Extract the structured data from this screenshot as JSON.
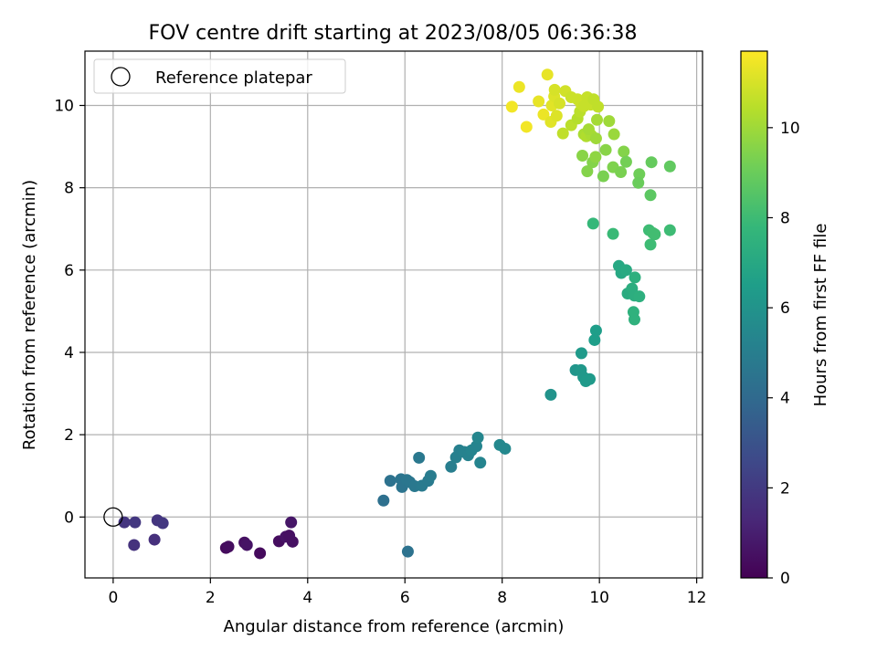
{
  "chart_data": {
    "type": "scatter",
    "title": "FOV centre drift starting at 2023/08/05 06:36:38",
    "xlabel": "Angular distance from reference (arcmin)",
    "ylabel": "Rotation from reference (arcmin)",
    "xlim": [
      -0.58,
      12.12
    ],
    "ylim": [
      -1.48,
      11.32
    ],
    "xticks": [
      "0",
      "2",
      "4",
      "6",
      "8",
      "10",
      "12"
    ],
    "yticks": [
      "0",
      "2",
      "4",
      "6",
      "8",
      "10"
    ],
    "grid": true,
    "legend": {
      "placement": "top-left",
      "entries": [
        {
          "label": "Reference platepar",
          "marker": "hollow-circle"
        }
      ]
    },
    "reference_point": {
      "x": 0,
      "y": 0
    },
    "colorbar": {
      "label": "Hours from first FF file",
      "range": [
        0,
        11.7
      ],
      "ticks": [
        "0",
        "2",
        "4",
        "6",
        "8",
        "10"
      ],
      "colormap": "viridis",
      "colormap_stops": [
        "#440154",
        "#482878",
        "#3e4989",
        "#31688e",
        "#26828e",
        "#1f9e89",
        "#35b779",
        "#6ece58",
        "#b5de2b",
        "#fde725"
      ]
    },
    "series": [
      {
        "points": [
          {
            "x": 2.32,
            "y": -0.75,
            "h": 0.3
          },
          {
            "x": 2.37,
            "y": -0.72,
            "h": 0.4
          },
          {
            "x": 2.7,
            "y": -0.62,
            "h": 0.5
          },
          {
            "x": 2.75,
            "y": -0.68,
            "h": 0.6
          },
          {
            "x": 3.02,
            "y": -0.88,
            "h": 0.3
          },
          {
            "x": 3.41,
            "y": -0.59,
            "h": 0.4
          },
          {
            "x": 3.55,
            "y": -0.48,
            "h": 0.6
          },
          {
            "x": 3.62,
            "y": -0.45,
            "h": 0.5
          },
          {
            "x": 3.66,
            "y": -0.13,
            "h": 0.7
          },
          {
            "x": 3.69,
            "y": -0.6,
            "h": 0.5
          },
          {
            "x": 0.23,
            "y": -0.13,
            "h": 1.8
          },
          {
            "x": 0.45,
            "y": -0.13,
            "h": 1.9
          },
          {
            "x": 0.43,
            "y": -0.68,
            "h": 1.7
          },
          {
            "x": 0.85,
            "y": -0.55,
            "h": 1.6
          },
          {
            "x": 0.91,
            "y": -0.08,
            "h": 1.8
          },
          {
            "x": 1.02,
            "y": -0.15,
            "h": 1.9
          },
          {
            "x": 5.56,
            "y": 0.4,
            "h": 4.3
          },
          {
            "x": 5.7,
            "y": 0.88,
            "h": 4.4
          },
          {
            "x": 5.92,
            "y": 0.92,
            "h": 4.5
          },
          {
            "x": 5.94,
            "y": 0.73,
            "h": 4.5
          },
          {
            "x": 6.04,
            "y": 0.9,
            "h": 4.6
          },
          {
            "x": 6.1,
            "y": 0.85,
            "h": 4.6
          },
          {
            "x": 6.2,
            "y": 0.75,
            "h": 4.7
          },
          {
            "x": 6.35,
            "y": 0.76,
            "h": 4.8
          },
          {
            "x": 6.48,
            "y": 0.88,
            "h": 4.8
          },
          {
            "x": 6.53,
            "y": 1.0,
            "h": 4.9
          },
          {
            "x": 6.29,
            "y": 1.44,
            "h": 4.7
          },
          {
            "x": 6.06,
            "y": -0.84,
            "h": 4.4
          },
          {
            "x": 6.95,
            "y": 1.22,
            "h": 5.0
          },
          {
            "x": 7.05,
            "y": 1.45,
            "h": 5.1
          },
          {
            "x": 7.12,
            "y": 1.62,
            "h": 5.1
          },
          {
            "x": 7.22,
            "y": 1.58,
            "h": 5.2
          },
          {
            "x": 7.3,
            "y": 1.5,
            "h": 5.2
          },
          {
            "x": 7.37,
            "y": 1.62,
            "h": 5.3
          },
          {
            "x": 7.47,
            "y": 1.72,
            "h": 5.3
          },
          {
            "x": 7.5,
            "y": 1.93,
            "h": 5.4
          },
          {
            "x": 7.55,
            "y": 1.32,
            "h": 5.3
          },
          {
            "x": 7.95,
            "y": 1.75,
            "h": 5.5
          },
          {
            "x": 8.06,
            "y": 1.66,
            "h": 5.5
          },
          {
            "x": 9.0,
            "y": 2.97,
            "h": 6.0
          },
          {
            "x": 9.51,
            "y": 3.57,
            "h": 6.1
          },
          {
            "x": 9.62,
            "y": 3.57,
            "h": 6.2
          },
          {
            "x": 9.67,
            "y": 3.4,
            "h": 6.2
          },
          {
            "x": 9.72,
            "y": 3.3,
            "h": 6.3
          },
          {
            "x": 9.8,
            "y": 3.35,
            "h": 6.3
          },
          {
            "x": 9.63,
            "y": 3.98,
            "h": 6.3
          },
          {
            "x": 9.9,
            "y": 4.3,
            "h": 6.5
          },
          {
            "x": 9.93,
            "y": 4.53,
            "h": 6.5
          },
          {
            "x": 10.4,
            "y": 6.1,
            "h": 7.0
          },
          {
            "x": 10.45,
            "y": 5.93,
            "h": 7.0
          },
          {
            "x": 10.55,
            "y": 6.0,
            "h": 7.1
          },
          {
            "x": 10.58,
            "y": 5.43,
            "h": 7.2
          },
          {
            "x": 10.67,
            "y": 5.55,
            "h": 7.3
          },
          {
            "x": 10.72,
            "y": 5.38,
            "h": 7.3
          },
          {
            "x": 10.73,
            "y": 5.82,
            "h": 7.4
          },
          {
            "x": 10.82,
            "y": 5.36,
            "h": 7.4
          },
          {
            "x": 10.7,
            "y": 4.98,
            "h": 7.5
          },
          {
            "x": 10.72,
            "y": 4.8,
            "h": 7.5
          },
          {
            "x": 9.87,
            "y": 7.13,
            "h": 7.8
          },
          {
            "x": 10.28,
            "y": 6.88,
            "h": 7.9
          },
          {
            "x": 11.02,
            "y": 6.97,
            "h": 8.0
          },
          {
            "x": 11.1,
            "y": 6.9,
            "h": 8.1
          },
          {
            "x": 11.14,
            "y": 6.87,
            "h": 8.1
          },
          {
            "x": 11.05,
            "y": 6.62,
            "h": 8.0
          },
          {
            "x": 11.45,
            "y": 6.97,
            "h": 8.0
          },
          {
            "x": 9.65,
            "y": 8.78,
            "h": 9.6
          },
          {
            "x": 9.75,
            "y": 8.4,
            "h": 9.5
          },
          {
            "x": 9.86,
            "y": 8.62,
            "h": 9.5
          },
          {
            "x": 9.92,
            "y": 8.75,
            "h": 9.7
          },
          {
            "x": 10.08,
            "y": 8.28,
            "h": 9.3
          },
          {
            "x": 10.13,
            "y": 8.92,
            "h": 9.6
          },
          {
            "x": 10.28,
            "y": 8.5,
            "h": 9.4
          },
          {
            "x": 10.44,
            "y": 8.38,
            "h": 9.3
          },
          {
            "x": 10.5,
            "y": 8.88,
            "h": 9.5
          },
          {
            "x": 10.55,
            "y": 8.63,
            "h": 9.2
          },
          {
            "x": 10.82,
            "y": 8.33,
            "h": 9.1
          },
          {
            "x": 10.8,
            "y": 8.12,
            "h": 9.0
          },
          {
            "x": 11.07,
            "y": 8.62,
            "h": 8.9
          },
          {
            "x": 11.45,
            "y": 8.52,
            "h": 8.8
          },
          {
            "x": 11.05,
            "y": 7.82,
            "h": 8.7
          },
          {
            "x": 9.25,
            "y": 9.32,
            "h": 10.6
          },
          {
            "x": 9.42,
            "y": 9.52,
            "h": 10.5
          },
          {
            "x": 9.55,
            "y": 9.68,
            "h": 10.4
          },
          {
            "x": 9.68,
            "y": 9.3,
            "h": 10.2
          },
          {
            "x": 9.73,
            "y": 9.25,
            "h": 10.3
          },
          {
            "x": 9.83,
            "y": 9.28,
            "h": 10.2
          },
          {
            "x": 9.93,
            "y": 9.2,
            "h": 10.0
          },
          {
            "x": 9.95,
            "y": 9.65,
            "h": 10.1
          },
          {
            "x": 10.2,
            "y": 9.62,
            "h": 10.0
          },
          {
            "x": 10.3,
            "y": 9.3,
            "h": 9.9
          },
          {
            "x": 9.78,
            "y": 9.42,
            "h": 10.1
          },
          {
            "x": 9.6,
            "y": 9.85,
            "h": 10.5
          },
          {
            "x": 8.2,
            "y": 9.97,
            "h": 11.5
          },
          {
            "x": 8.35,
            "y": 10.45,
            "h": 11.4
          },
          {
            "x": 8.5,
            "y": 9.48,
            "h": 11.5
          },
          {
            "x": 8.75,
            "y": 10.1,
            "h": 11.3
          },
          {
            "x": 8.85,
            "y": 9.78,
            "h": 11.4
          },
          {
            "x": 8.93,
            "y": 10.75,
            "h": 11.3
          },
          {
            "x": 9.0,
            "y": 9.6,
            "h": 11.2
          },
          {
            "x": 9.02,
            "y": 10.0,
            "h": 11.2
          },
          {
            "x": 9.07,
            "y": 10.22,
            "h": 11.1
          },
          {
            "x": 9.08,
            "y": 10.38,
            "h": 11.0
          },
          {
            "x": 9.12,
            "y": 9.75,
            "h": 11.1
          },
          {
            "x": 9.18,
            "y": 10.05,
            "h": 11.0
          },
          {
            "x": 9.3,
            "y": 10.35,
            "h": 10.9
          },
          {
            "x": 9.42,
            "y": 10.2,
            "h": 10.8
          },
          {
            "x": 9.55,
            "y": 10.15,
            "h": 10.8
          },
          {
            "x": 9.62,
            "y": 10.05,
            "h": 10.8
          },
          {
            "x": 9.68,
            "y": 9.98,
            "h": 10.7
          },
          {
            "x": 9.75,
            "y": 10.2,
            "h": 10.7
          },
          {
            "x": 9.82,
            "y": 10.02,
            "h": 10.7
          },
          {
            "x": 9.88,
            "y": 10.15,
            "h": 10.6
          },
          {
            "x": 9.97,
            "y": 9.97,
            "h": 10.6
          }
        ]
      }
    ]
  }
}
